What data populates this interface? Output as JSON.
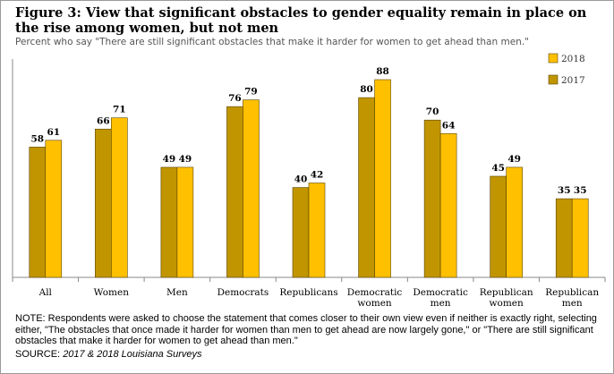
{
  "title": "Figure 3: View that significant obstacles to gender equality remain in place on the rise among women, but not men",
  "subtitle": "Percent who say \"There are still significant obstacles that make it harder for women to get ahead than men.\"",
  "note": "NOTE: Respondents were asked to choose the statement that comes closer to their own view even if neither is exactly right, selecting either, \"The obstacles that once made it harder for women than men to get ahead are now largely gone,\" or \"There are still significant obstacles that make it harder for women to get ahead than men.\"",
  "source_label": "SOURCE:",
  "source_text": "2017 & 2018 Louisiana Surveys",
  "chart_data": {
    "type": "bar",
    "categories": [
      "All",
      "Women",
      "Men",
      "Democrats",
      "Republicans",
      "Democratic women",
      "Democratic men",
      "Republican women",
      "Republican men"
    ],
    "category_lines": [
      [
        "All"
      ],
      [
        "Women"
      ],
      [
        "Men"
      ],
      [
        "Democrats"
      ],
      [
        "Republicans"
      ],
      [
        "Democratic",
        "women"
      ],
      [
        "Democratic",
        "men"
      ],
      [
        "Republican",
        "women"
      ],
      [
        "Republican",
        "men"
      ]
    ],
    "series": [
      {
        "name": "2017",
        "color": "#c09500",
        "values": [
          58,
          66,
          49,
          76,
          40,
          80,
          70,
          45,
          35
        ]
      },
      {
        "name": "2018",
        "color": "#ffc000",
        "values": [
          61,
          71,
          49,
          79,
          42,
          88,
          64,
          49,
          35
        ]
      }
    ],
    "ylim": [
      0,
      100
    ],
    "legend_order": [
      "2018",
      "2017"
    ],
    "legend_position": "top-right",
    "grid": false
  }
}
